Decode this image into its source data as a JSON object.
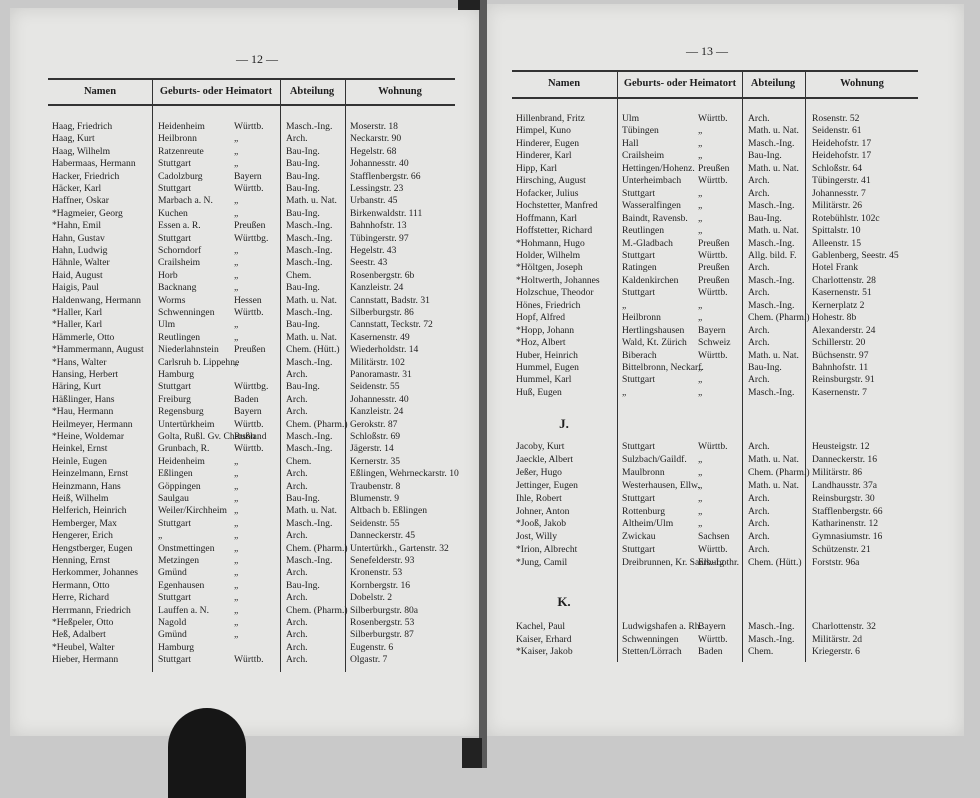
{
  "pages": [
    {
      "page_number": "— 12 —",
      "columns": [
        "Namen",
        "Geburts- oder Heimatort",
        "Abteilung",
        "Wohnung"
      ],
      "sections": [
        {
          "rows": [
            [
              "Haag, Friedrich",
              "Heidenheim",
              "Württb.",
              "Masch.-Ing.",
              "Moserstr. 18"
            ],
            [
              "Haag, Kurt",
              "Heilbronn",
              "„",
              "Arch.",
              "Neckarstr. 90"
            ],
            [
              "Haag, Wilhelm",
              "Ratzenreute",
              "„",
              "Bau-Ing.",
              "Hegelstr. 68"
            ],
            [
              "Habermaas, Hermann",
              "Stuttgart",
              "„",
              "Bau-Ing.",
              "Johannesstr. 40"
            ],
            [
              "Hacker, Friedrich",
              "Cadolzburg",
              "Bayern",
              "Bau-Ing.",
              "Stafflenbergstr. 66"
            ],
            [
              "Häcker, Karl",
              "Stuttgart",
              "Württb.",
              "Bau-Ing.",
              "Lessingstr. 23"
            ],
            [
              "Haffner, Oskar",
              "Marbach a. N.",
              "„",
              "Math. u. Nat.",
              "Urbanstr. 45"
            ],
            [
              "*Hagmeier, Georg",
              "Kuchen",
              "„",
              "Bau-Ing.",
              "Birkenwaldstr. 111"
            ],
            [
              "*Hahn, Emil",
              "Essen a. R.",
              "Preußen",
              "Masch.-Ing.",
              "Bahnhofstr. 13"
            ],
            [
              "Hahn, Gustav",
              "Stuttgart",
              "Württbg.",
              "Masch.-Ing.",
              "Tübingerstr. 97"
            ],
            [
              "Hahn, Ludwig",
              "Schorndorf",
              "„",
              "Masch.-Ing.",
              "Hegelstr. 43"
            ],
            [
              "Hähnle, Walter",
              "Crailsheim",
              "„",
              "Masch.-Ing.",
              "Seestr. 43"
            ],
            [
              "Haid, August",
              "Horb",
              "„",
              "Chem.",
              "Rosenbergstr. 6b"
            ],
            [
              "Haigis, Paul",
              "Backnang",
              "„",
              "Bau-Ing.",
              "Kanzleistr. 24"
            ],
            [
              "Haldenwang, Hermann",
              "Worms",
              "Hessen",
              "Math. u. Nat.",
              "Cannstatt, Badstr. 31"
            ],
            [
              "*Haller, Karl",
              "Schwenningen",
              "Württb.",
              "Masch.-Ing.",
              "Silberburgstr. 86"
            ],
            [
              "*Haller, Karl",
              "Ulm",
              "„",
              "Bau-Ing.",
              "Cannstatt, Teckstr. 72"
            ],
            [
              "Hämmerle, Otto",
              "Reutlingen",
              "„",
              "Math. u. Nat.",
              "Kasernenstr. 49"
            ],
            [
              "*Hammermann, August",
              "Niederlahnstein",
              "Preußen",
              "Chem. (Hütt.)",
              "Wiederholdstr. 14"
            ],
            [
              "*Hans, Walter",
              "Carlsruh b. Lippehne",
              "„",
              "Masch.-Ing.",
              "Militärstr. 102"
            ],
            [
              "Hansing, Herbert",
              "Hamburg",
              null,
              "Arch.",
              "Panoramastr. 31"
            ],
            [
              "Häring, Kurt",
              "Stuttgart",
              "Württbg.",
              "Bau-Ing.",
              "Seidenstr. 55"
            ],
            [
              "Häßlinger, Hans",
              "Freiburg",
              "Baden",
              "Arch.",
              "Johannesstr. 40"
            ],
            [
              "*Hau, Hermann",
              "Regensburg",
              "Bayern",
              "Arch.",
              "Kanzleistr. 24"
            ],
            [
              "Heilmeyer, Hermann",
              "Untertürkheim",
              "Württb.",
              "Chem. (Pharm.)",
              "Gerokstr. 87"
            ],
            [
              "*Heine, Woldemar",
              "Golta, Rußl. Gv. Cherson",
              "Rußland",
              "Masch.-Ing.",
              "Schloßstr. 69"
            ],
            [
              "Heinkel, Ernst",
              "Grunbach, R.",
              "Württb.",
              "Masch.-Ing.",
              "Jägerstr. 14"
            ],
            [
              "Heinle, Eugen",
              "Heidenheim",
              "„",
              "Chem.",
              "Kernerstr. 35"
            ],
            [
              "Heinzelmann, Ernst",
              "Eßlingen",
              "„",
              "Arch.",
              "Eßlingen, Wehrneckarstr. 10"
            ],
            [
              "Heinzmann, Hans",
              "Göppingen",
              "„",
              "Arch.",
              "Traubenstr. 8"
            ],
            [
              "Heiß, Wilhelm",
              "Saulgau",
              "„",
              "Bau-Ing.",
              "Blumenstr. 9"
            ],
            [
              "Helferich, Heinrich",
              "Weiler/Kirchheim",
              "„",
              "Math. u. Nat.",
              "Altbach b. Eßlingen"
            ],
            [
              "Hemberger, Max",
              "Stuttgart",
              "„",
              "Masch.-Ing.",
              "Seidenstr. 55"
            ],
            [
              "Hengerer, Erich",
              "„",
              "„",
              "Arch.",
              "Danneckerstr. 45"
            ],
            [
              "Hengstberger, Eugen",
              "Onstmettingen",
              "„",
              "Chem. (Pharm.)",
              "Untertürkh., Gartenstr. 32"
            ],
            [
              "Henning, Ernst",
              "Metzingen",
              "„",
              "Masch.-Ing.",
              "Senefelderstr. 93"
            ],
            [
              "Herkommer, Johannes",
              "Gmünd",
              "„",
              "Arch.",
              "Kronenstr. 53"
            ],
            [
              "Hermann, Otto",
              "Egenhausen",
              "„",
              "Bau-Ing.",
              "Kornbergstr. 16"
            ],
            [
              "Herre, Richard",
              "Stuttgart",
              "„",
              "Arch.",
              "Dobelstr. 2"
            ],
            [
              "Herrmann, Friedrich",
              "Lauffen a. N.",
              "„",
              "Chem. (Pharm.)",
              "Silberburgstr. 80a"
            ],
            [
              "*Heßpeler, Otto",
              "Nagold",
              "„",
              "Arch.",
              "Rosenbergstr. 53"
            ],
            [
              "Heß, Adalbert",
              "Gmünd",
              "„",
              "Arch.",
              "Silberburgstr. 87"
            ],
            [
              "*Heubel, Walter",
              "Hamburg",
              null,
              "Arch.",
              "Eugenstr. 6"
            ],
            [
              "Hieber, Hermann",
              "Stuttgart",
              "Württb.",
              "Arch.",
              "Olgastr. 7"
            ]
          ]
        }
      ]
    },
    {
      "page_number": "— 13 —",
      "columns": [
        "Namen",
        "Geburts- oder Heimatort",
        "Abteilung",
        "Wohnung"
      ],
      "sections": [
        {
          "rows": [
            [
              "Hillenbrand, Fritz",
              "Ulm",
              "Württb.",
              "Arch.",
              "Rosenstr. 52"
            ],
            [
              "Himpel, Kuno",
              "Tübingen",
              "„",
              "Math. u. Nat.",
              "Seidenstr. 61"
            ],
            [
              "Hinderer, Eugen",
              "Hall",
              "„",
              "Masch.-Ing.",
              "Heidehofstr. 17"
            ],
            [
              "Hinderer, Karl",
              "Crailsheim",
              "„",
              "Bau-Ing.",
              "Heidehofstr. 17"
            ],
            [
              "Hipp, Karl",
              "Hettingen/Hohenz.",
              "Preußen",
              "Math. u. Nat.",
              "Schloßstr. 64"
            ],
            [
              "Hirsching, August",
              "Unterheimbach",
              "Württb.",
              "Arch.",
              "Tübingerstr. 41"
            ],
            [
              "Hofacker, Julius",
              "Stuttgart",
              "„",
              "Arch.",
              "Johannesstr. 7"
            ],
            [
              "Hochstetter, Manfred",
              "Wasseralfingen",
              "„",
              "Masch.-Ing.",
              "Militärstr. 26"
            ],
            [
              "Hoffmann, Karl",
              "Baindt, Ravensb.",
              "„",
              "Bau-Ing.",
              "Rotebühlstr. 102c"
            ],
            [
              "Hoffstetter, Richard",
              "Reutlingen",
              "„",
              "Math. u. Nat.",
              "Spittalstr. 10"
            ],
            [
              "*Hohmann, Hugo",
              "M.-Gladbach",
              "Preußen",
              "Masch.-Ing.",
              "Alleenstr. 15"
            ],
            [
              "Holder, Wilhelm",
              "Stuttgart",
              "Württb.",
              "Allg. bild. F.",
              "Gablenberg, Seestr. 45"
            ],
            [
              "*Höltgen, Joseph",
              "Ratingen",
              "Preußen",
              "Arch.",
              "Hotel Frank"
            ],
            [
              "*Holtwerth, Johannes",
              "Kaldenkirchen",
              "Preußen",
              "Masch.-Ing.",
              "Charlottenstr. 28"
            ],
            [
              "Holzschue, Theodor",
              "Stuttgart",
              "Württb.",
              "Arch.",
              "Kasernenstr. 51"
            ],
            [
              "Hönes, Friedrich",
              "„",
              "„",
              "Masch.-Ing.",
              "Kernerplatz 2"
            ],
            [
              "Hopf, Alfred",
              "Heilbronn",
              "„",
              "Chem. (Pharm.)",
              "Hohestr. 8b"
            ],
            [
              "*Hopp, Johann",
              "Hertlingshausen",
              "Bayern",
              "Arch.",
              "Alexanderstr. 24"
            ],
            [
              "*Hoz, Albert",
              "Wald, Kt. Zürich",
              "Schweiz",
              "Arch.",
              "Schillerstr. 20"
            ],
            [
              "Huber, Heinrich",
              "Biberach",
              "Württb.",
              "Math. u. Nat.",
              "Büchsenstr. 97"
            ],
            [
              "Hummel, Eugen",
              "Bittelbronn, Neckarf.",
              "„",
              "Bau-Ing.",
              "Bahnhofstr. 11"
            ],
            [
              "Hummel, Karl",
              "Stuttgart",
              "„",
              "Arch.",
              "Reinsburgstr. 91"
            ],
            [
              "Huß, Eugen",
              "„",
              "„",
              "Masch.-Ing.",
              "Kasernenstr. 7"
            ]
          ]
        },
        {
          "letter": "J.",
          "rows": [
            [
              "Jacoby, Kurt",
              "Stuttgart",
              "Württb.",
              "Arch.",
              "Heusteigstr. 12"
            ],
            [
              "Jaeckle, Albert",
              "Sulzbach/Gaildf.",
              "„",
              "Math. u. Nat.",
              "Danneckerstr. 16"
            ],
            [
              "Jeßer, Hugo",
              "Maulbronn",
              "„",
              "Chem. (Pharm.)",
              "Militärstr. 86"
            ],
            [
              "Jettinger, Eugen",
              "Westerhausen, Ellw.",
              "„",
              "Math. u. Nat.",
              "Landhausstr. 37a"
            ],
            [
              "Ihle, Robert",
              "Stuttgart",
              "„",
              "Arch.",
              "Reinsburgstr. 30"
            ],
            [
              "Johner, Anton",
              "Rottenburg",
              "„",
              "Arch.",
              "Stafflenbergstr. 66"
            ],
            [
              "*Jooß, Jakob",
              "Altheim/Ulm",
              "„",
              "Arch.",
              "Katharinenstr. 12"
            ],
            [
              "Jost, Willy",
              "Zwickau",
              "Sachsen",
              "Arch.",
              "Gymnasiumstr. 16"
            ],
            [
              "*Irion, Albrecht",
              "Stuttgart",
              "Württb.",
              "Arch.",
              "Schützenstr. 21"
            ],
            [
              "*Jung, Camil",
              "Dreibrunnen, Kr. Saarburg",
              "Els.-Lothr.",
              "Chem. (Hütt.)",
              "Forststr. 96a"
            ]
          ]
        },
        {
          "letter": "K.",
          "rows": [
            [
              "Kachel, Paul",
              "Ludwigshafen a. Rh.",
              "Bayern",
              "Masch.-Ing.",
              "Charlottenstr. 32"
            ],
            [
              "Kaiser, Erhard",
              "Schwenningen",
              "Württb.",
              "Masch.-Ing.",
              "Militärstr. 2d"
            ],
            [
              "*Kaiser, Jakob",
              "Stetten/Lörrach",
              "Baden",
              "Chem.",
              "Kriegerstr. 6"
            ]
          ]
        }
      ]
    }
  ]
}
